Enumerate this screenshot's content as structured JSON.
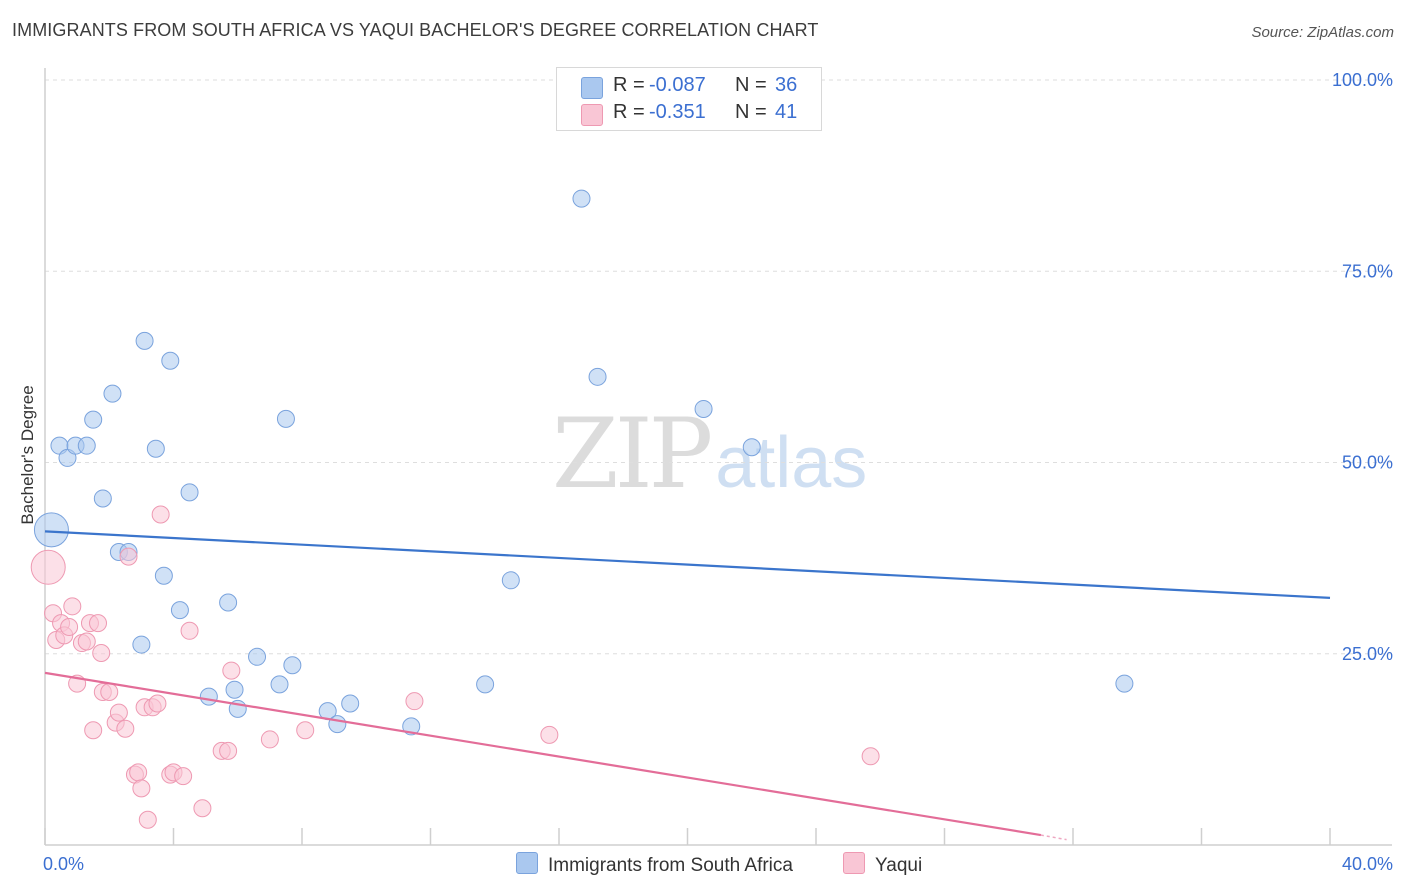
{
  "header": {
    "title": "IMMIGRANTS FROM SOUTH AFRICA VS YAQUI BACHELOR'S DEGREE CORRELATION CHART",
    "source": "Source: ZipAtlas.com"
  },
  "watermark": {
    "zip": "ZIP",
    "atlas": "atlas"
  },
  "legend_top": [
    {
      "r_label": "R =",
      "r_value": "-0.087",
      "n_label": "N =",
      "n_value": "36",
      "color": "#aac8ef",
      "border": "#7aa3dd"
    },
    {
      "r_label": "R =",
      "r_value": "-0.351",
      "n_label": "N =",
      "n_value": "41",
      "color": "#f9c6d5",
      "border": "#ee99b2"
    }
  ],
  "legend_bottom": [
    {
      "label": "Immigrants from South Africa",
      "color": "#aac8ef",
      "border": "#7aa3dd"
    },
    {
      "label": "Yaqui",
      "color": "#f9c6d5",
      "border": "#ee99b2"
    }
  ],
  "chart_data": {
    "type": "scatter",
    "title": "IMMIGRANTS FROM SOUTH AFRICA VS YAQUI BACHELOR'S DEGREE CORRELATION CHART",
    "xlabel": "",
    "ylabel": "Bachelor's Degree",
    "xlim": [
      0,
      40
    ],
    "ylim": [
      0,
      100
    ],
    "x_tick_labels": [
      {
        "value": 0,
        "label": "0.0%"
      },
      {
        "value": 40,
        "label": "40.0%"
      }
    ],
    "y_tick_labels": [
      {
        "value": 25,
        "label": "25.0%"
      },
      {
        "value": 50,
        "label": "50.0%"
      },
      {
        "value": 75,
        "label": "75.0%"
      },
      {
        "value": 100,
        "label": "100.0%"
      }
    ],
    "x_minor_ticks": [
      0,
      4,
      8,
      12,
      16,
      20,
      24,
      28,
      32,
      36,
      40
    ],
    "grid": true,
    "series": [
      {
        "name": "Immigrants from South Africa",
        "color": "#aac8ef",
        "stroke": "#7aa3dd",
        "trend": {
          "x0": 0,
          "y0": 41.0,
          "x1": 40,
          "y1": 32.3,
          "color": "#3b75cc"
        },
        "points": [
          {
            "x": 0.2,
            "y": 41.2,
            "big": true
          },
          {
            "x": 0.45,
            "y": 52.2
          },
          {
            "x": 0.7,
            "y": 50.6
          },
          {
            "x": 0.95,
            "y": 52.2
          },
          {
            "x": 1.3,
            "y": 52.2
          },
          {
            "x": 1.5,
            "y": 55.6
          },
          {
            "x": 1.8,
            "y": 45.3
          },
          {
            "x": 2.1,
            "y": 59.0
          },
          {
            "x": 2.3,
            "y": 38.3
          },
          {
            "x": 2.6,
            "y": 38.3
          },
          {
            "x": 3.0,
            "y": 26.2
          },
          {
            "x": 3.1,
            "y": 65.9
          },
          {
            "x": 3.45,
            "y": 51.8
          },
          {
            "x": 3.7,
            "y": 35.2
          },
          {
            "x": 3.9,
            "y": 63.3
          },
          {
            "x": 4.2,
            "y": 30.7
          },
          {
            "x": 4.5,
            "y": 46.1
          },
          {
            "x": 5.1,
            "y": 19.4
          },
          {
            "x": 5.7,
            "y": 31.7
          },
          {
            "x": 5.9,
            "y": 20.3
          },
          {
            "x": 6.0,
            "y": 17.8
          },
          {
            "x": 6.6,
            "y": 24.6
          },
          {
            "x": 7.3,
            "y": 21.0
          },
          {
            "x": 7.5,
            "y": 55.7
          },
          {
            "x": 7.7,
            "y": 23.5
          },
          {
            "x": 8.8,
            "y": 17.5
          },
          {
            "x": 9.1,
            "y": 15.8
          },
          {
            "x": 9.5,
            "y": 18.5
          },
          {
            "x": 11.4,
            "y": 15.5
          },
          {
            "x": 13.7,
            "y": 21.0
          },
          {
            "x": 14.5,
            "y": 34.6
          },
          {
            "x": 16.7,
            "y": 84.5
          },
          {
            "x": 17.2,
            "y": 61.2
          },
          {
            "x": 20.5,
            "y": 57.0
          },
          {
            "x": 22.0,
            "y": 52.0
          },
          {
            "x": 33.6,
            "y": 21.1
          }
        ]
      },
      {
        "name": "Yaqui",
        "color": "#f9c6d5",
        "stroke": "#ee99b2",
        "trend": {
          "x0": 0,
          "y0": 22.5,
          "x1": 31.0,
          "y1": 1.3,
          "dash_x1": 31.8,
          "dash_y1": 0.7,
          "color": "#e36d98"
        },
        "points": [
          {
            "x": 0.1,
            "y": 36.3,
            "big": true
          },
          {
            "x": 0.25,
            "y": 30.3
          },
          {
            "x": 0.35,
            "y": 26.8
          },
          {
            "x": 0.5,
            "y": 29.0
          },
          {
            "x": 0.6,
            "y": 27.4
          },
          {
            "x": 0.75,
            "y": 28.5
          },
          {
            "x": 0.85,
            "y": 31.2
          },
          {
            "x": 1.0,
            "y": 21.1
          },
          {
            "x": 1.15,
            "y": 26.4
          },
          {
            "x": 1.3,
            "y": 26.6
          },
          {
            "x": 1.4,
            "y": 29.0
          },
          {
            "x": 1.5,
            "y": 15.0
          },
          {
            "x": 1.65,
            "y": 29.0
          },
          {
            "x": 1.75,
            "y": 25.1
          },
          {
            "x": 1.8,
            "y": 20.0
          },
          {
            "x": 2.0,
            "y": 20.0
          },
          {
            "x": 2.2,
            "y": 16.0
          },
          {
            "x": 2.3,
            "y": 17.3
          },
          {
            "x": 2.5,
            "y": 15.2
          },
          {
            "x": 2.6,
            "y": 37.7
          },
          {
            "x": 2.8,
            "y": 9.2
          },
          {
            "x": 2.9,
            "y": 9.5
          },
          {
            "x": 3.0,
            "y": 7.4
          },
          {
            "x": 3.1,
            "y": 18.0
          },
          {
            "x": 3.2,
            "y": 3.3
          },
          {
            "x": 3.35,
            "y": 18.0
          },
          {
            "x": 3.5,
            "y": 18.5
          },
          {
            "x": 3.6,
            "y": 43.2
          },
          {
            "x": 3.9,
            "y": 9.2
          },
          {
            "x": 4.0,
            "y": 9.5
          },
          {
            "x": 4.3,
            "y": 9.0
          },
          {
            "x": 4.5,
            "y": 28.0
          },
          {
            "x": 4.9,
            "y": 4.8
          },
          {
            "x": 5.5,
            "y": 12.3
          },
          {
            "x": 5.7,
            "y": 12.3
          },
          {
            "x": 5.8,
            "y": 22.8
          },
          {
            "x": 7.0,
            "y": 13.8
          },
          {
            "x": 8.1,
            "y": 15.0
          },
          {
            "x": 11.5,
            "y": 18.8
          },
          {
            "x": 15.7,
            "y": 14.4
          },
          {
            "x": 25.7,
            "y": 11.6
          }
        ]
      }
    ]
  }
}
